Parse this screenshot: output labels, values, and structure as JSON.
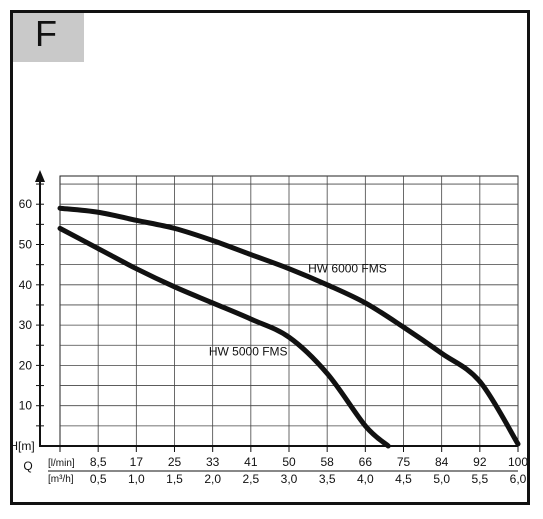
{
  "panel_letter": "F",
  "chart_data": {
    "type": "line",
    "ylabel": "H[m]",
    "xlabel": "Q",
    "x_unit_lmin": "[l/min]",
    "x_unit_m3h": "[m³/h]",
    "ylim": [
      0,
      67
    ],
    "xlim_m3h": [
      0,
      6.0
    ],
    "y_ticks": [
      "10",
      "20",
      "30",
      "40",
      "50",
      "60"
    ],
    "x_ticks_lmin": [
      "8,5",
      "17",
      "25",
      "33",
      "41",
      "50",
      "58",
      "66",
      "75",
      "84",
      "92",
      "100"
    ],
    "x_ticks_m3h": [
      "0,5",
      "1,0",
      "1,5",
      "2,0",
      "2,5",
      "3,0",
      "3,5",
      "4,0",
      "4,5",
      "5,0",
      "5,5",
      "6,0"
    ],
    "grid": true,
    "series": [
      {
        "name": "HW 6000 FMS",
        "x": [
          0,
          0.5,
          1.0,
          1.5,
          2.0,
          2.5,
          3.0,
          3.5,
          4.0,
          4.5,
          5.0,
          5.5,
          6.0
        ],
        "y": [
          59,
          58,
          56,
          54,
          51,
          47.5,
          44,
          40,
          35.5,
          29.5,
          23,
          16,
          0.5
        ]
      },
      {
        "name": "HW 5000 FMS",
        "x": [
          0,
          0.5,
          1.0,
          1.5,
          2.0,
          2.5,
          3.0,
          3.5,
          4.0,
          4.3
        ],
        "y": [
          54,
          49,
          44,
          39.5,
          35.5,
          31.5,
          27,
          18,
          5,
          0
        ]
      }
    ]
  }
}
